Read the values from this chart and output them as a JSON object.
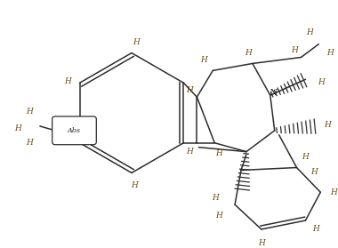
{
  "bg_color": "#ffffff",
  "bond_color": "#2d2d2d",
  "lw": 1.1,
  "figsize": [
    3.8,
    2.79
  ],
  "dpi": 100,
  "xlim": [
    0,
    380
  ],
  "ylim": [
    0,
    279
  ]
}
